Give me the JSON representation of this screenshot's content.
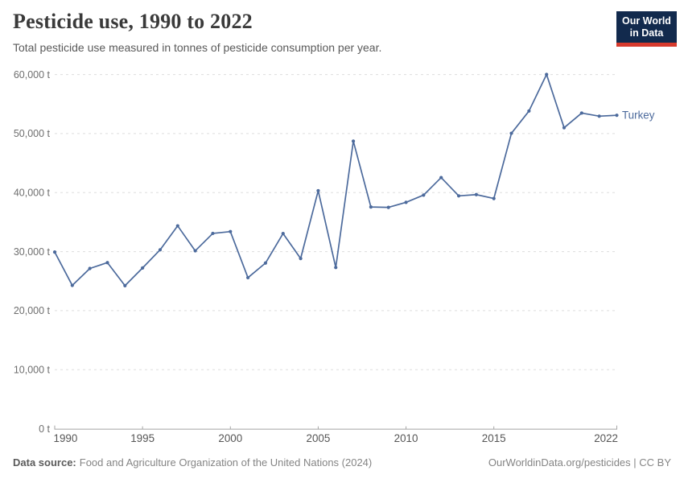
{
  "header": {
    "title": "Pesticide use, 1990 to 2022",
    "subtitle": "Total pesticide use measured in tonnes of pesticide consumption per year."
  },
  "logo": {
    "line1": "Our World",
    "line2": "in Data"
  },
  "series_end_label": "Turkey",
  "chart_data": {
    "type": "line",
    "title": "Pesticide use, 1990 to 2022",
    "xlabel": "",
    "ylabel": "Total pesticide use (tonnes per year)",
    "x": [
      1990,
      1991,
      1992,
      1993,
      1994,
      1995,
      1996,
      1997,
      1998,
      1999,
      2000,
      2001,
      2002,
      2003,
      2004,
      2005,
      2006,
      2007,
      2008,
      2009,
      2010,
      2011,
      2012,
      2013,
      2014,
      2015,
      2016,
      2017,
      2018,
      2019,
      2020,
      2021,
      2022
    ],
    "series": [
      {
        "name": "Turkey",
        "values": [
          29930,
          24280,
          27150,
          28140,
          24240,
          27240,
          30310,
          34370,
          30140,
          33090,
          33400,
          25590,
          28070,
          33070,
          28840,
          40320,
          27310,
          48720,
          37560,
          37500,
          38350,
          39580,
          42550,
          39450,
          39660,
          39000,
          50050,
          53820,
          60020,
          50990,
          53480,
          52950,
          53100
        ]
      }
    ],
    "ylim": [
      0,
      60000
    ],
    "yticks": [
      0,
      10000,
      20000,
      30000,
      40000,
      50000,
      60000
    ],
    "ytick_labels": [
      "0 t",
      "10,000 t",
      "20,000 t",
      "30,000 t",
      "40,000 t",
      "50,000 t",
      "60,000 t"
    ],
    "xticks": [
      1990,
      1995,
      2000,
      2005,
      2010,
      2015,
      2022
    ],
    "xtick_labels": [
      "1990",
      "1995",
      "2000",
      "2005",
      "2010",
      "2015",
      "2022"
    ],
    "grid": "horizontal-dashed",
    "legend": "line-end-label"
  },
  "footer": {
    "source_label": "Data source:",
    "source_text": "Food and Agriculture Organization of the United Nations (2024)",
    "credit": "OurWorldinData.org/pesticides | CC BY"
  },
  "colors": {
    "line": "#4c6a9c",
    "grid": "#dddddd",
    "axis": "#a5a5a5",
    "ytick_label": "#6e6e6e",
    "xtick_label": "#565656",
    "logo_bg": "#122a4d",
    "logo_bar": "#d73a2d"
  }
}
